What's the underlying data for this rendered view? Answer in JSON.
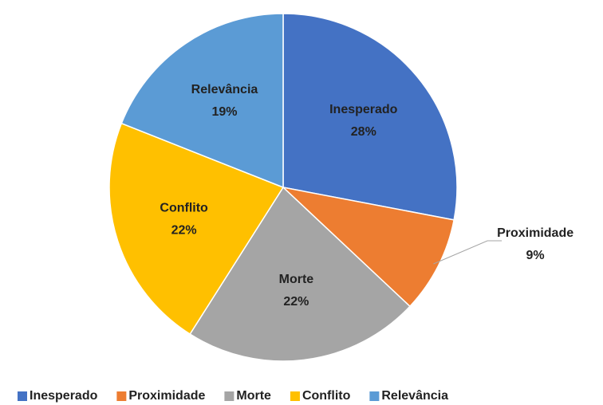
{
  "chart_data": {
    "type": "pie",
    "categories": [
      "Inesperado",
      "Proximidade",
      "Morte",
      "Conflito",
      "Relevância"
    ],
    "values": [
      28,
      9,
      22,
      22,
      19
    ],
    "value_labels": [
      "28%",
      "9%",
      "22%",
      "22%",
      "19%"
    ],
    "colors": [
      "#4472c4",
      "#ed7d31",
      "#a5a5a5",
      "#ffc000",
      "#5b9bd5"
    ],
    "legend": "bottom"
  }
}
